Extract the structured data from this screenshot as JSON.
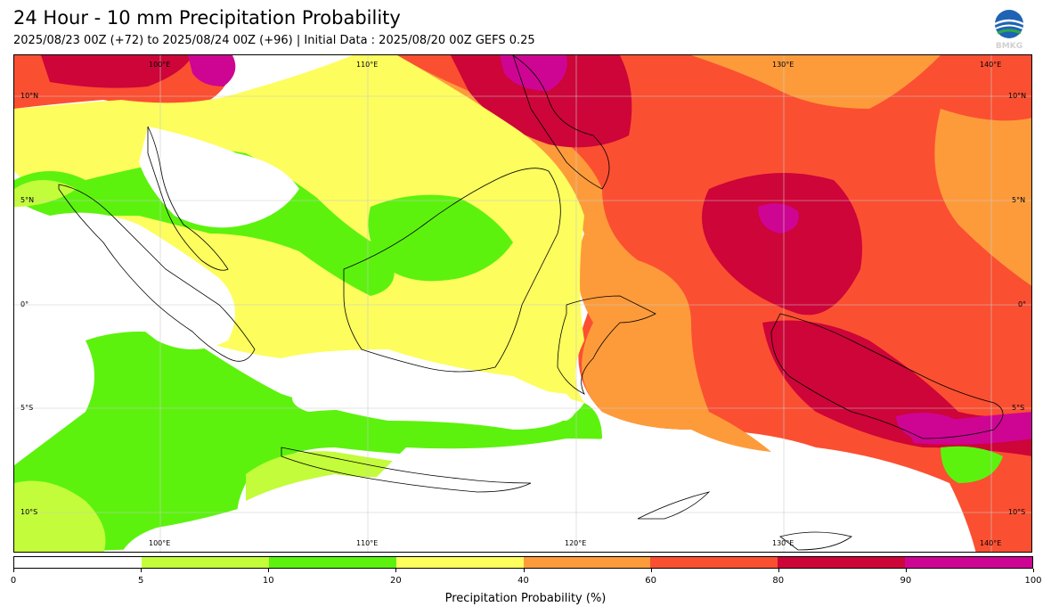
{
  "header": {
    "title": "24 Hour - 10 mm Precipitation Probability",
    "subtitle": "2025/08/23 00Z (+72) to 2025/08/24 00Z (+96) | Initial Data : 2025/08/20 00Z GEFS 0.25",
    "logo_text": "BMKG"
  },
  "map": {
    "lon_labels": [
      "100°E",
      "110°E",
      "120°E",
      "130°E",
      "140°E"
    ],
    "lat_labels": [
      "10°N",
      "5°N",
      "0°",
      "5°S",
      "10°S"
    ],
    "extent": {
      "lon_min": 93,
      "lon_max": 142,
      "lat_min": -12,
      "lat_max": 12
    }
  },
  "colorbar": {
    "label": "Precipitation Probability (%)",
    "levels": [
      "0",
      "5",
      "10",
      "20",
      "40",
      "60",
      "80",
      "90",
      "100"
    ],
    "colors": [
      "#ffffff",
      "#c3fc3a",
      "#5cf20e",
      "#fdfd5e",
      "#fd9b3b",
      "#fb4f32",
      "#cd0538",
      "#ce0593"
    ]
  }
}
